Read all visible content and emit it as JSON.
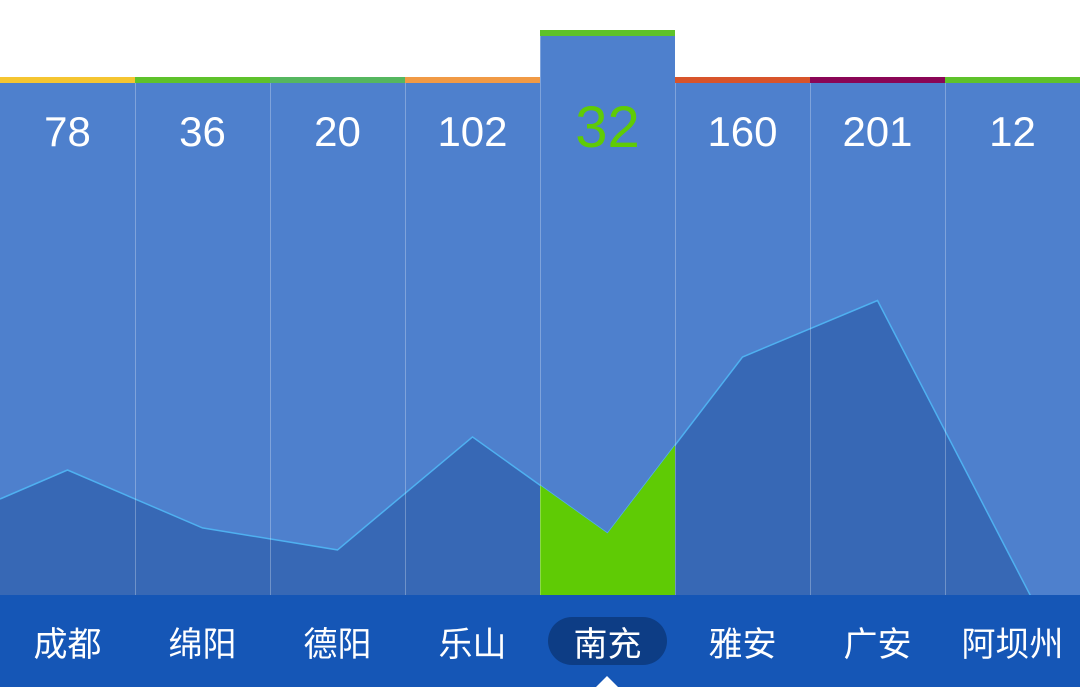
{
  "chart_data": {
    "type": "area",
    "categories": [
      "成都",
      "绵阳",
      "德阳",
      "乐山",
      "南充",
      "雅安",
      "广安",
      "阿坝州"
    ],
    "values": [
      78,
      36,
      20,
      102,
      32,
      160,
      201,
      12
    ],
    "selected_index": 4,
    "level_colors": [
      "#f5c531",
      "#5ec22a",
      "#55b75f",
      "#f19a45",
      "#5ec22a",
      "#d8542a",
      "#8a0656",
      "#5ec22a"
    ],
    "colors": {
      "panel": "#4e80cd",
      "area_fill": "#3768b5",
      "line": "#4fb0f0",
      "highlight": "#5fcb05",
      "selected_value_text": "#5fcb05",
      "value_text": "#ffffff",
      "city_bar": "#1556b6"
    }
  }
}
